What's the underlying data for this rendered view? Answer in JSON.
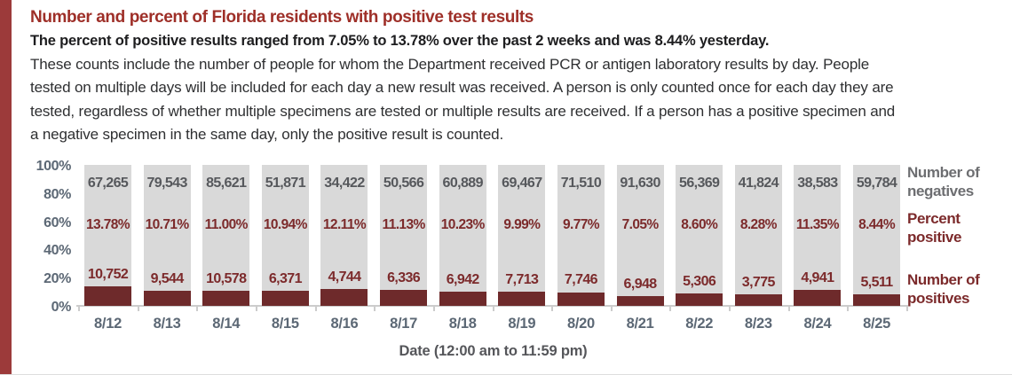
{
  "page": {
    "title": "Number and percent of Florida residents with positive test results",
    "subtitle": "The percent of positive results ranged from 7.05% to 13.78% over the past 2 weeks and was 8.44% yesterday.",
    "description_lines": [
      "These counts include the number of people for whom the Department received PCR or antigen laboratory results by day. People",
      "tested on multiple days will be included for each day a new result was received. A person is only counted once for each day they are",
      "tested, regardless of whether multiple specimens are tested or multiple results are received. If a person has a positive specimen and",
      "a negative specimen in the same day, only the positive result is counted."
    ]
  },
  "colors": {
    "accent_bar": "#9c3a3a",
    "title_red": "#9e2f28",
    "negative_bar": "#d9d9d9",
    "positive_bar": "#6e2a2b",
    "negative_value_text": "#56585c",
    "positive_value_text": "#7c2a2b",
    "axis_text": "#5c6875",
    "legend_gray": "#6d6e71"
  },
  "chart_data": {
    "type": "bar",
    "subtype": "stacked-100-percent",
    "xlabel": "Date (12:00 am to 11:59 pm)",
    "ylim": [
      0,
      100
    ],
    "y_ticks": [
      "100%",
      "80%",
      "60%",
      "40%",
      "20%",
      "0%"
    ],
    "grid": false,
    "legend_position": "right",
    "categories": [
      "8/12",
      "8/13",
      "8/14",
      "8/15",
      "8/16",
      "8/17",
      "8/18",
      "8/19",
      "8/20",
      "8/21",
      "8/22",
      "8/23",
      "8/24",
      "8/25"
    ],
    "series": [
      {
        "name": "Number of negatives",
        "values": [
          67265,
          79543,
          85621,
          51871,
          34422,
          50566,
          60889,
          69467,
          71510,
          91630,
          56369,
          41824,
          38583,
          59784
        ],
        "labels": [
          "67,265",
          "79,543",
          "85,621",
          "51,871",
          "34,422",
          "50,566",
          "60,889",
          "69,467",
          "71,510",
          "91,630",
          "56,369",
          "41,824",
          "38,583",
          "59,784"
        ]
      },
      {
        "name": "Percent positive",
        "values": [
          13.78,
          10.71,
          11.0,
          10.94,
          12.11,
          11.13,
          10.23,
          9.99,
          9.77,
          7.05,
          8.6,
          8.28,
          11.35,
          8.44
        ],
        "labels": [
          "13.78%",
          "10.71%",
          "11.00%",
          "10.94%",
          "12.11%",
          "11.13%",
          "10.23%",
          "9.99%",
          "9.77%",
          "7.05%",
          "8.60%",
          "8.28%",
          "11.35%",
          "8.44%"
        ]
      },
      {
        "name": "Number of positives",
        "values": [
          10752,
          9544,
          10578,
          6371,
          4744,
          6336,
          6942,
          7713,
          7746,
          6948,
          5306,
          3775,
          4941,
          5511
        ],
        "labels": [
          "10,752",
          "9,544",
          "10,578",
          "6,371",
          "4,744",
          "6,336",
          "6,942",
          "7,713",
          "7,746",
          "6,948",
          "5,306",
          "3,775",
          "4,941",
          "5,511"
        ]
      }
    ],
    "legend": {
      "negatives": "Number of\nnegatives",
      "percent": "Percent\npositive",
      "positives": "Number of\npositives"
    }
  }
}
